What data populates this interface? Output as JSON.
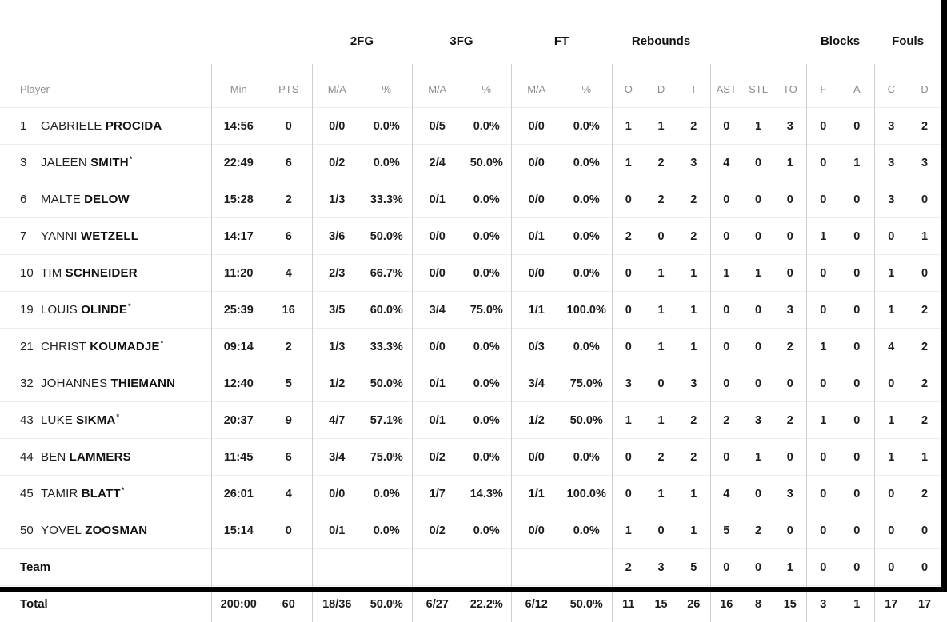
{
  "table": {
    "starter_mark": "*",
    "header": {
      "groups": [
        "2FG",
        "3FG",
        "FT",
        "Rebounds",
        "Blocks",
        "Fouls"
      ],
      "columns": [
        "Player",
        "Min",
        "PTS",
        "M/A",
        "%",
        "M/A",
        "%",
        "M/A",
        "%",
        "O",
        "D",
        "T",
        "AST",
        "STL",
        "TO",
        "F",
        "A",
        "C",
        "D"
      ]
    },
    "players": [
      {
        "number": "1",
        "first": "GABRIELE",
        "last": "PROCIDA",
        "starter": false,
        "min": "14:56",
        "pts": "0",
        "fg2_ma": "0/0",
        "fg2_pct": "0.0%",
        "fg3_ma": "0/5",
        "fg3_pct": "0.0%",
        "ft_ma": "0/0",
        "ft_pct": "0.0%",
        "reb_o": "1",
        "reb_d": "1",
        "reb_t": "2",
        "ast": "0",
        "stl": "1",
        "to": "3",
        "blk_f": "0",
        "blk_a": "0",
        "foul_c": "3",
        "foul_d": "2"
      },
      {
        "number": "3",
        "first": "JALEEN",
        "last": "SMITH",
        "starter": true,
        "min": "22:49",
        "pts": "6",
        "fg2_ma": "0/2",
        "fg2_pct": "0.0%",
        "fg3_ma": "2/4",
        "fg3_pct": "50.0%",
        "ft_ma": "0/0",
        "ft_pct": "0.0%",
        "reb_o": "1",
        "reb_d": "2",
        "reb_t": "3",
        "ast": "4",
        "stl": "0",
        "to": "1",
        "blk_f": "0",
        "blk_a": "1",
        "foul_c": "3",
        "foul_d": "3"
      },
      {
        "number": "6",
        "first": "MALTE",
        "last": "DELOW",
        "starter": false,
        "min": "15:28",
        "pts": "2",
        "fg2_ma": "1/3",
        "fg2_pct": "33.3%",
        "fg3_ma": "0/1",
        "fg3_pct": "0.0%",
        "ft_ma": "0/0",
        "ft_pct": "0.0%",
        "reb_o": "0",
        "reb_d": "2",
        "reb_t": "2",
        "ast": "0",
        "stl": "0",
        "to": "0",
        "blk_f": "0",
        "blk_a": "0",
        "foul_c": "3",
        "foul_d": "0"
      },
      {
        "number": "7",
        "first": "YANNI",
        "last": "WETZELL",
        "starter": false,
        "min": "14:17",
        "pts": "6",
        "fg2_ma": "3/6",
        "fg2_pct": "50.0%",
        "fg3_ma": "0/0",
        "fg3_pct": "0.0%",
        "ft_ma": "0/1",
        "ft_pct": "0.0%",
        "reb_o": "2",
        "reb_d": "0",
        "reb_t": "2",
        "ast": "0",
        "stl": "0",
        "to": "0",
        "blk_f": "1",
        "blk_a": "0",
        "foul_c": "0",
        "foul_d": "1"
      },
      {
        "number": "10",
        "first": "TIM",
        "last": "SCHNEIDER",
        "starter": false,
        "min": "11:20",
        "pts": "4",
        "fg2_ma": "2/3",
        "fg2_pct": "66.7%",
        "fg3_ma": "0/0",
        "fg3_pct": "0.0%",
        "ft_ma": "0/0",
        "ft_pct": "0.0%",
        "reb_o": "0",
        "reb_d": "1",
        "reb_t": "1",
        "ast": "1",
        "stl": "1",
        "to": "0",
        "blk_f": "0",
        "blk_a": "0",
        "foul_c": "1",
        "foul_d": "0"
      },
      {
        "number": "19",
        "first": "LOUIS",
        "last": "OLINDE",
        "starter": true,
        "min": "25:39",
        "pts": "16",
        "fg2_ma": "3/5",
        "fg2_pct": "60.0%",
        "fg3_ma": "3/4",
        "fg3_pct": "75.0%",
        "ft_ma": "1/1",
        "ft_pct": "100.0%",
        "reb_o": "0",
        "reb_d": "1",
        "reb_t": "1",
        "ast": "0",
        "stl": "0",
        "to": "3",
        "blk_f": "0",
        "blk_a": "0",
        "foul_c": "1",
        "foul_d": "2"
      },
      {
        "number": "21",
        "first": "CHRIST",
        "last": "KOUMADJE",
        "starter": true,
        "min": "09:14",
        "pts": "2",
        "fg2_ma": "1/3",
        "fg2_pct": "33.3%",
        "fg3_ma": "0/0",
        "fg3_pct": "0.0%",
        "ft_ma": "0/3",
        "ft_pct": "0.0%",
        "reb_o": "0",
        "reb_d": "1",
        "reb_t": "1",
        "ast": "0",
        "stl": "0",
        "to": "2",
        "blk_f": "1",
        "blk_a": "0",
        "foul_c": "4",
        "foul_d": "2"
      },
      {
        "number": "32",
        "first": "JOHANNES",
        "last": "THIEMANN",
        "starter": false,
        "min": "12:40",
        "pts": "5",
        "fg2_ma": "1/2",
        "fg2_pct": "50.0%",
        "fg3_ma": "0/1",
        "fg3_pct": "0.0%",
        "ft_ma": "3/4",
        "ft_pct": "75.0%",
        "reb_o": "3",
        "reb_d": "0",
        "reb_t": "3",
        "ast": "0",
        "stl": "0",
        "to": "0",
        "blk_f": "0",
        "blk_a": "0",
        "foul_c": "0",
        "foul_d": "2"
      },
      {
        "number": "43",
        "first": "LUKE",
        "last": "SIKMA",
        "starter": true,
        "min": "20:37",
        "pts": "9",
        "fg2_ma": "4/7",
        "fg2_pct": "57.1%",
        "fg3_ma": "0/1",
        "fg3_pct": "0.0%",
        "ft_ma": "1/2",
        "ft_pct": "50.0%",
        "reb_o": "1",
        "reb_d": "1",
        "reb_t": "2",
        "ast": "2",
        "stl": "3",
        "to": "2",
        "blk_f": "1",
        "blk_a": "0",
        "foul_c": "1",
        "foul_d": "2"
      },
      {
        "number": "44",
        "first": "BEN",
        "last": "LAMMERS",
        "starter": false,
        "min": "11:45",
        "pts": "6",
        "fg2_ma": "3/4",
        "fg2_pct": "75.0%",
        "fg3_ma": "0/2",
        "fg3_pct": "0.0%",
        "ft_ma": "0/0",
        "ft_pct": "0.0%",
        "reb_o": "0",
        "reb_d": "2",
        "reb_t": "2",
        "ast": "0",
        "stl": "1",
        "to": "0",
        "blk_f": "0",
        "blk_a": "0",
        "foul_c": "1",
        "foul_d": "1"
      },
      {
        "number": "45",
        "first": "TAMIR",
        "last": "BLATT",
        "starter": true,
        "min": "26:01",
        "pts": "4",
        "fg2_ma": "0/0",
        "fg2_pct": "0.0%",
        "fg3_ma": "1/7",
        "fg3_pct": "14.3%",
        "ft_ma": "1/1",
        "ft_pct": "100.0%",
        "reb_o": "0",
        "reb_d": "1",
        "reb_t": "1",
        "ast": "4",
        "stl": "0",
        "to": "3",
        "blk_f": "0",
        "blk_a": "0",
        "foul_c": "0",
        "foul_d": "2"
      },
      {
        "number": "50",
        "first": "YOVEL",
        "last": "ZOOSMAN",
        "starter": false,
        "min": "15:14",
        "pts": "0",
        "fg2_ma": "0/1",
        "fg2_pct": "0.0%",
        "fg3_ma": "0/2",
        "fg3_pct": "0.0%",
        "ft_ma": "0/0",
        "ft_pct": "0.0%",
        "reb_o": "1",
        "reb_d": "0",
        "reb_t": "1",
        "ast": "5",
        "stl": "2",
        "to": "0",
        "blk_f": "0",
        "blk_a": "0",
        "foul_c": "0",
        "foul_d": "0"
      }
    ],
    "team_row": {
      "label": "Team",
      "min": "",
      "pts": "",
      "fg2_ma": "",
      "fg2_pct": "",
      "fg3_ma": "",
      "fg3_pct": "",
      "ft_ma": "",
      "ft_pct": "",
      "reb_o": "2",
      "reb_d": "3",
      "reb_t": "5",
      "ast": "0",
      "stl": "0",
      "to": "1",
      "blk_f": "0",
      "blk_a": "0",
      "foul_c": "0",
      "foul_d": "0"
    },
    "total_row": {
      "label": "Total",
      "min": "200:00",
      "pts": "60",
      "fg2_ma": "18/36",
      "fg2_pct": "50.0%",
      "fg3_ma": "6/27",
      "fg3_pct": "22.2%",
      "ft_ma": "6/12",
      "ft_pct": "50.0%",
      "reb_o": "11",
      "reb_d": "15",
      "reb_t": "26",
      "ast": "16",
      "stl": "8",
      "to": "15",
      "blk_f": "3",
      "blk_a": "1",
      "foul_c": "17",
      "foul_d": "17"
    }
  },
  "colors": {
    "frame": "#000000",
    "divider_vertical": "#cfcfcf",
    "divider_horizontal": "#ededed",
    "subheader_text": "#8c8c8c",
    "text": "#1c1c1c"
  }
}
